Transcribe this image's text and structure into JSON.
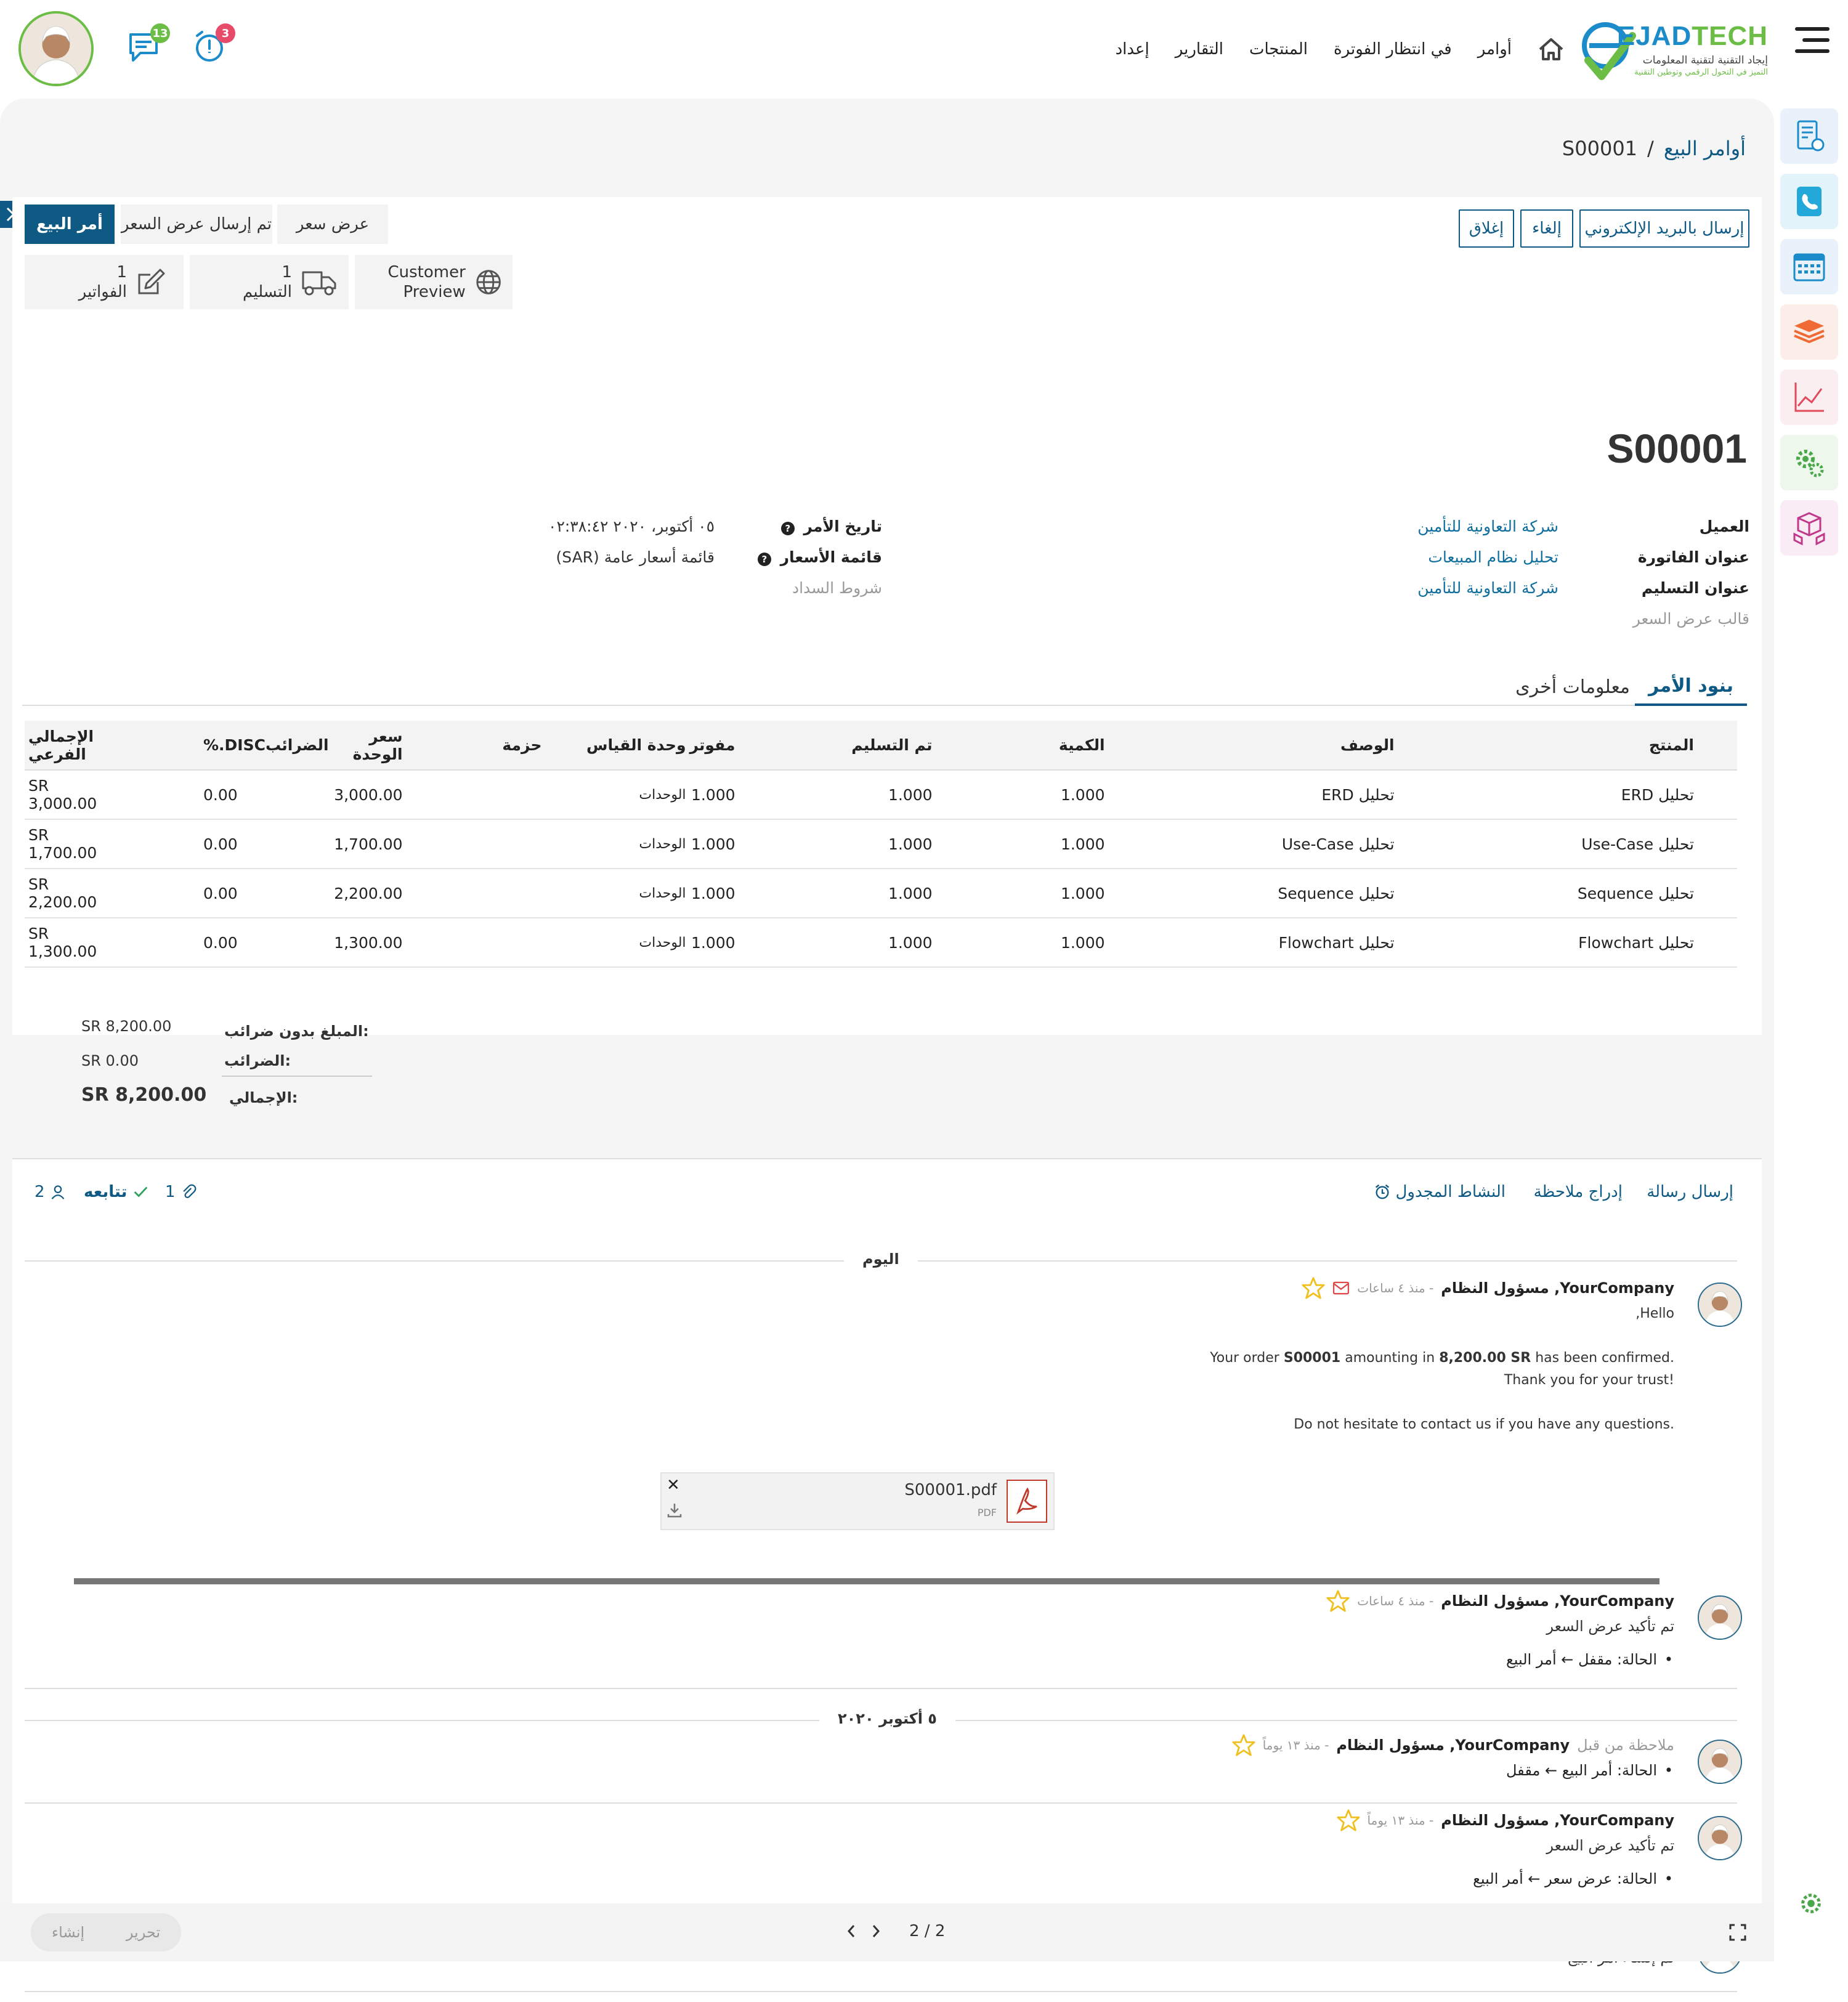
{
  "brand": {
    "name_a": "EJAD",
    "name_b": "TECH",
    "tagline": "إيجاد التقنية لتقنية المعلومات",
    "tagline2": "التميز في التحول الرقمي وتوطين التقنية"
  },
  "nav": {
    "items": [
      "أوامر",
      "في انتظار الفوترة",
      "المنتجات",
      "التقارير",
      "إعداد"
    ]
  },
  "systray": {
    "chat_count": "13",
    "activity_count": "3"
  },
  "colors": {
    "primary": "#0f5a84",
    "accent": "#6cbd45",
    "badge_red": "#e84a6a",
    "badge_green": "#6cbd45"
  },
  "dock": {
    "icons": [
      "invoice-calculator-icon",
      "phone-icon",
      "calendar-icon",
      "money-stack-icon",
      "line-chart-icon",
      "gears-icon",
      "boxes-icon"
    ]
  },
  "breadcrumb": {
    "parent": "أوامر البيع",
    "separator": "/",
    "current": "S00001"
  },
  "actions": {
    "send_email": "إرسال بالبريد الإلكتروني",
    "cancel": "إلغاء",
    "lock": "إغلاق"
  },
  "stages": [
    "عرض سعر",
    "تم إرسال عرض السعر",
    "أمر البيع"
  ],
  "smart_buttons": {
    "preview": {
      "label_1": "Customer",
      "label_2": "Preview"
    },
    "delivery": {
      "count": "1",
      "label": "التسليم"
    },
    "invoices": {
      "count": "1",
      "label": "الفواتير"
    }
  },
  "order": {
    "name": "S00001",
    "customer_label": "العميل",
    "customer": "شركة التعاونية للتأمين",
    "invoice_addr_label": "عنوان الفاتورة",
    "invoice_addr": "تحليل نظام المبيعات",
    "delivery_addr_label": "عنوان التسليم",
    "delivery_addr": "شركة التعاونية للتأمين",
    "template_label": "قالب عرض السعر",
    "date_label": "تاريخ الأمر",
    "date": "٠٥ أكتوبر، ٢٠٢٠ ٠٢:٣٨:٤٢",
    "pricelist_label": "قائمة الأسعار",
    "pricelist": "قائمة أسعار عامة (SAR)",
    "payment_terms_label": "شروط السداد"
  },
  "tabs": {
    "lines": "بنود الأمر",
    "other": "معلومات أخرى"
  },
  "table": {
    "headers": {
      "product": "المنتج",
      "description": "الوصف",
      "qty": "الكمية",
      "delivered": "تم التسليم",
      "invoiced": "مفوتر",
      "uom": "وحدة القياس",
      "package": "حزمة",
      "unit_price": "سعر الوحدة",
      "taxes": "الضرائب",
      "disc": "%.DISC",
      "subtotal": "الإجمالي الفرعي"
    },
    "rows": [
      {
        "product": "تحليل ERD",
        "description": "تحليل ERD",
        "qty": "1.000",
        "delivered": "1.000",
        "invoiced": "1.000",
        "uom": "الوحدات",
        "unit_price": "3,000.00",
        "disc": "0.00",
        "subtotal": "SR 3,000.00"
      },
      {
        "product": "تحليل Use-Case",
        "description": "تحليل Use-Case",
        "qty": "1.000",
        "delivered": "1.000",
        "invoiced": "1.000",
        "uom": "الوحدات",
        "unit_price": "1,700.00",
        "disc": "0.00",
        "subtotal": "SR 1,700.00"
      },
      {
        "product": "تحليل Sequence",
        "description": "تحليل Sequence",
        "qty": "1.000",
        "delivered": "1.000",
        "invoiced": "1.000",
        "uom": "الوحدات",
        "unit_price": "2,200.00",
        "disc": "0.00",
        "subtotal": "SR 2,200.00"
      },
      {
        "product": "تحليل Flowchart",
        "description": "تحليل Flowchart",
        "qty": "1.000",
        "delivered": "1.000",
        "invoiced": "1.000",
        "uom": "الوحدات",
        "unit_price": "1,300.00",
        "disc": "0.00",
        "subtotal": "SR 1,300.00"
      }
    ]
  },
  "totals": {
    "untaxed_label": "المبلغ بدون ضرائب:",
    "untaxed": "SR 8,200.00",
    "taxes_label": "الضرائب:",
    "taxes": "SR 0.00",
    "total_label": "الإجمالي:",
    "total": "SR 8,200.00"
  },
  "chatter": {
    "send_message": "إرسال رسالة",
    "log_note": "إدراج ملاحظة",
    "schedule": "النشاط المجدول",
    "attachments": "1",
    "follow": "تتابعه",
    "followers": "2",
    "today": "اليوم",
    "date_sep": "٥ أكتوبر ٢٠٢٠",
    "author": "YourCompany, مسؤول النظام",
    "note_by": "ملاحظة من قبل",
    "ago_4h": "- منذ ٤ ساعات",
    "ago_13d": "- منذ ١٣ يوماً",
    "email": {
      "hello": "Hello,",
      "l1_a": "Your order ",
      "l1_order": "S00001",
      "l1_b": " amounting in ",
      "l1_amount": "8,200.00 SR",
      "l1_c": " has been confirmed.",
      "l2": "Thank you for your trust!",
      "l3": "Do not hesitate to contact us if you have any questions.",
      "file": "S00001.pdf",
      "file_type": "PDF"
    },
    "m2_text": "تم تأكيد عرض السعر",
    "m2_state_a": "الحالة: مقفل",
    "m2_state_b": "أمر البيع",
    "m3_state_a": "الحالة: أمر البيع",
    "m3_state_b": "مقفل",
    "m4_text": "تم تأكيد عرض السعر",
    "m4_state_a": "الحالة: عرض سعر",
    "m4_state_b": "أمر البيع",
    "m5_text": "تم إنشاء أمر البيع"
  },
  "pager": {
    "value": "2 / 2",
    "create": "إنشاء",
    "edit": "تحرير"
  }
}
